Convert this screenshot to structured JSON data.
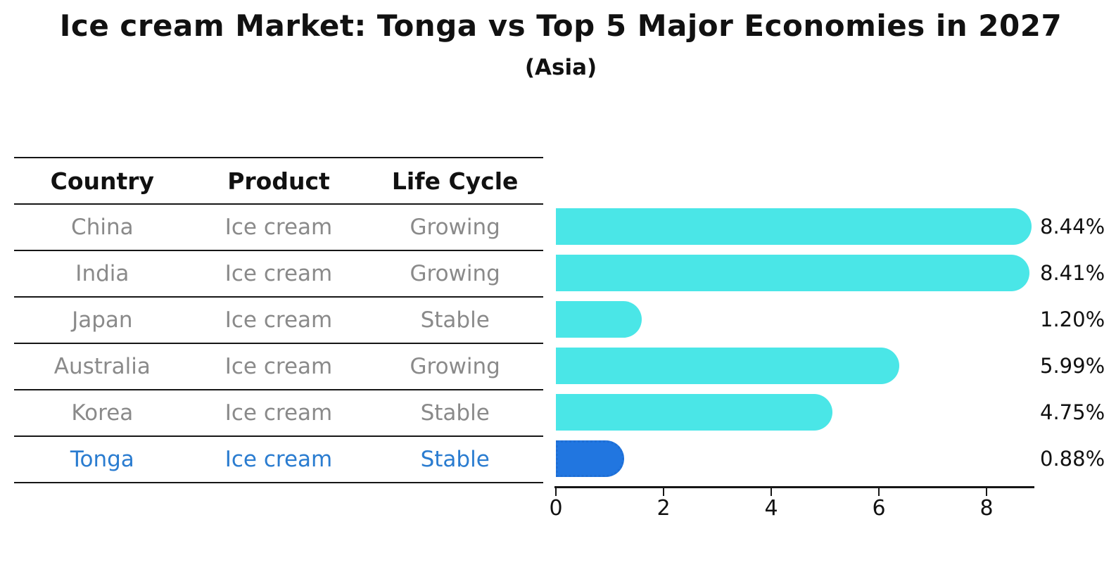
{
  "chart_data": {
    "type": "bar",
    "orientation": "horizontal",
    "title": "Ice cream Market: Tonga vs Top 5 Major Economies in 2027",
    "subtitle": "(Asia)",
    "table_headers": [
      "Country",
      "Product",
      "Life Cycle"
    ],
    "categories": [
      "China",
      "India",
      "Japan",
      "Australia",
      "Korea",
      "Tonga"
    ],
    "values": [
      8.44,
      8.41,
      1.2,
      5.99,
      4.75,
      0.88
    ],
    "rows": [
      {
        "country": "China",
        "product": "Ice cream",
        "life_cycle": "Growing",
        "value": 8.44,
        "value_label": "8.44%",
        "highlight": false
      },
      {
        "country": "India",
        "product": "Ice cream",
        "life_cycle": "Growing",
        "value": 8.41,
        "value_label": "8.41%",
        "highlight": false
      },
      {
        "country": "Japan",
        "product": "Ice cream",
        "life_cycle": "Stable",
        "value": 1.2,
        "value_label": "1.20%",
        "highlight": false
      },
      {
        "country": "Australia",
        "product": "Ice cream",
        "life_cycle": "Growing",
        "value": 5.99,
        "value_label": "5.99%",
        "highlight": false
      },
      {
        "country": "Korea",
        "product": "Ice cream",
        "life_cycle": "Stable",
        "value": 4.75,
        "value_label": "4.75%",
        "highlight": false
      },
      {
        "country": "Tonga",
        "product": "Ice cream",
        "life_cycle": "Stable",
        "value": 0.88,
        "value_label": "0.88%",
        "highlight": true
      }
    ],
    "x_ticks": [
      0,
      2,
      4,
      6,
      8
    ],
    "xlim": [
      0,
      8.89
    ],
    "grid": false,
    "legend": "none",
    "colors": {
      "bar": "#4ae6e7",
      "highlight_bar": "#2176e0",
      "highlight_bar_border": "#1e6ed4",
      "highlight_text": "#2a7cd0",
      "text": "#111111",
      "muted_text": "#8a8a8a",
      "line": "#161616"
    }
  }
}
